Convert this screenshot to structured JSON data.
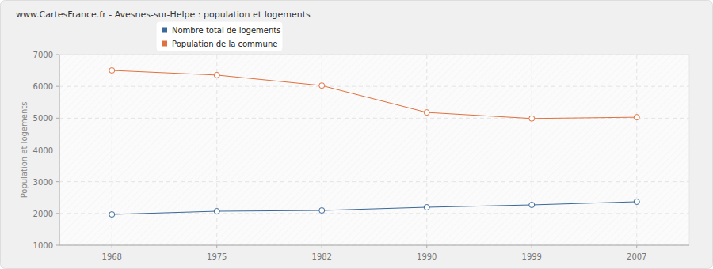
{
  "chart_data": {
    "type": "line",
    "title": "www.CartesFrance.fr - Avesnes-sur-Helpe : population et logements",
    "y_label": "Population et logements",
    "categories": [
      "1968",
      "1975",
      "1982",
      "1990",
      "1999",
      "2007"
    ],
    "series": [
      {
        "name": "Nombre total de logements",
        "color": "#3a6899",
        "marker": "circle",
        "values": [
          1970,
          2070,
          2095,
          2195,
          2270,
          2370
        ]
      },
      {
        "name": "Population de la commune",
        "color": "#e0713f",
        "marker": "circle",
        "values": [
          6502,
          6355,
          6025,
          5180,
          4990,
          5030
        ]
      }
    ],
    "ylim": [
      1000,
      7000
    ],
    "yticks": [
      1000,
      2000,
      3000,
      4000,
      5000,
      6000,
      7000
    ],
    "grid": true,
    "legend": "top-left"
  }
}
